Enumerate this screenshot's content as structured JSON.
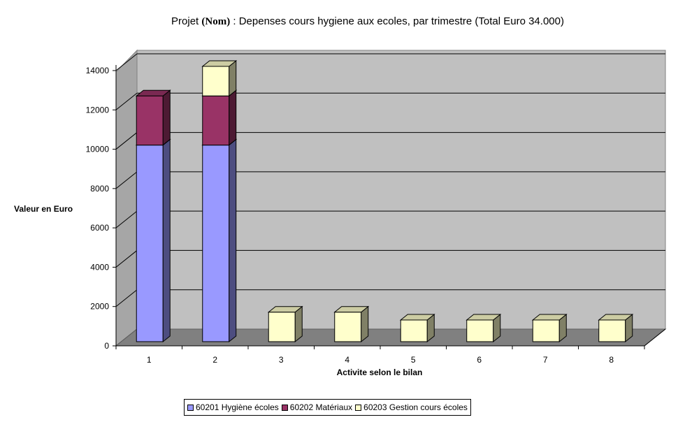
{
  "title_parts": {
    "pre": "Projet ",
    "nom": "(Nom)",
    "post": " : Depenses cours hygiene aux ecoles, par trimestre (Total Euro 34.000)"
  },
  "chart_data": {
    "type": "bar",
    "stacked": true,
    "three_d": true,
    "title": "Projet (Nom) : Depenses cours hygiene aux ecoles, par trimestre (Total Euro 34.000)",
    "xlabel": "Activite selon le bilan",
    "ylabel": "Valeur en Euro",
    "categories": [
      "1",
      "2",
      "3",
      "4",
      "5",
      "6",
      "7",
      "8"
    ],
    "yticks": [
      "0",
      "2000",
      "4000",
      "6000",
      "8000",
      "10000",
      "12000",
      "14000"
    ],
    "ylim": [
      0,
      14000
    ],
    "grid": true,
    "legend_position": "bottom",
    "series": [
      {
        "name": "60201 Hygiène écoles",
        "color": "#9999ff",
        "values": [
          10000,
          10000,
          0,
          0,
          0,
          0,
          0,
          0
        ]
      },
      {
        "name": "60202 Matériaux",
        "color": "#993366",
        "values": [
          2500,
          2500,
          0,
          0,
          0,
          0,
          0,
          0
        ]
      },
      {
        "name": "60203 Gestion cours écoles",
        "color": "#ffffcc",
        "values": [
          0,
          1500,
          1500,
          1500,
          1100,
          1100,
          1100,
          1100
        ]
      }
    ]
  }
}
